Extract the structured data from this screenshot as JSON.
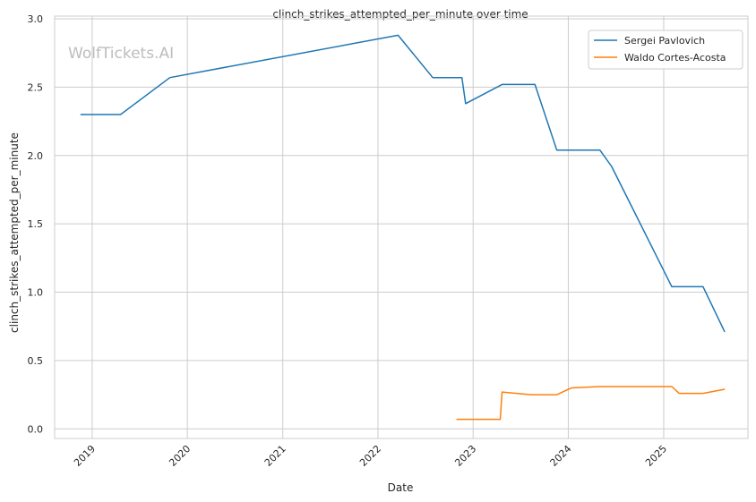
{
  "chart_data": {
    "type": "line",
    "title": "clinch_strikes_attempted_per_minute over time",
    "xlabel": "Date",
    "ylabel": "clinch_strikes_attempted_per_minute",
    "watermark": "WolfTickets.AI",
    "x_ticks": [
      "2019",
      "2020",
      "2021",
      "2022",
      "2023",
      "2024",
      "2025"
    ],
    "y_ticks": [
      "0.0",
      "0.5",
      "1.0",
      "1.5",
      "2.0",
      "2.5",
      "3.0"
    ],
    "xlim": [
      "2018-08-10",
      "2025-11-20"
    ],
    "ylim": [
      -0.07,
      3.02
    ],
    "grid": true,
    "legend_position": "top-right",
    "series": [
      {
        "name": "Sergei Pavlovich",
        "color": "#1f77b4",
        "points": [
          [
            "2018-11-17",
            2.3
          ],
          [
            "2019-04-20",
            2.3
          ],
          [
            "2019-10-26",
            2.57
          ],
          [
            "2022-03-19",
            2.88
          ],
          [
            "2022-07-30",
            2.57
          ],
          [
            "2022-11-19",
            2.57
          ],
          [
            "2022-12-03",
            2.38
          ],
          [
            "2023-04-22",
            2.52
          ],
          [
            "2023-08-26",
            2.52
          ],
          [
            "2023-11-18",
            2.04
          ],
          [
            "2024-05-01",
            2.04
          ],
          [
            "2024-06-15",
            1.92
          ],
          [
            "2025-02-01",
            1.04
          ],
          [
            "2025-06-01",
            1.04
          ],
          [
            "2025-08-23",
            0.71
          ]
        ]
      },
      {
        "name": "Waldo Cortes-Acosta",
        "color": "#ff7f0e",
        "points": [
          [
            "2022-10-29",
            0.07
          ],
          [
            "2023-04-15",
            0.07
          ],
          [
            "2023-04-22",
            0.27
          ],
          [
            "2023-08-12",
            0.25
          ],
          [
            "2023-11-18",
            0.25
          ],
          [
            "2024-01-13",
            0.3
          ],
          [
            "2024-05-01",
            0.31
          ],
          [
            "2025-02-01",
            0.31
          ],
          [
            "2025-03-01",
            0.26
          ],
          [
            "2025-06-01",
            0.26
          ],
          [
            "2025-08-23",
            0.29
          ]
        ]
      }
    ]
  }
}
